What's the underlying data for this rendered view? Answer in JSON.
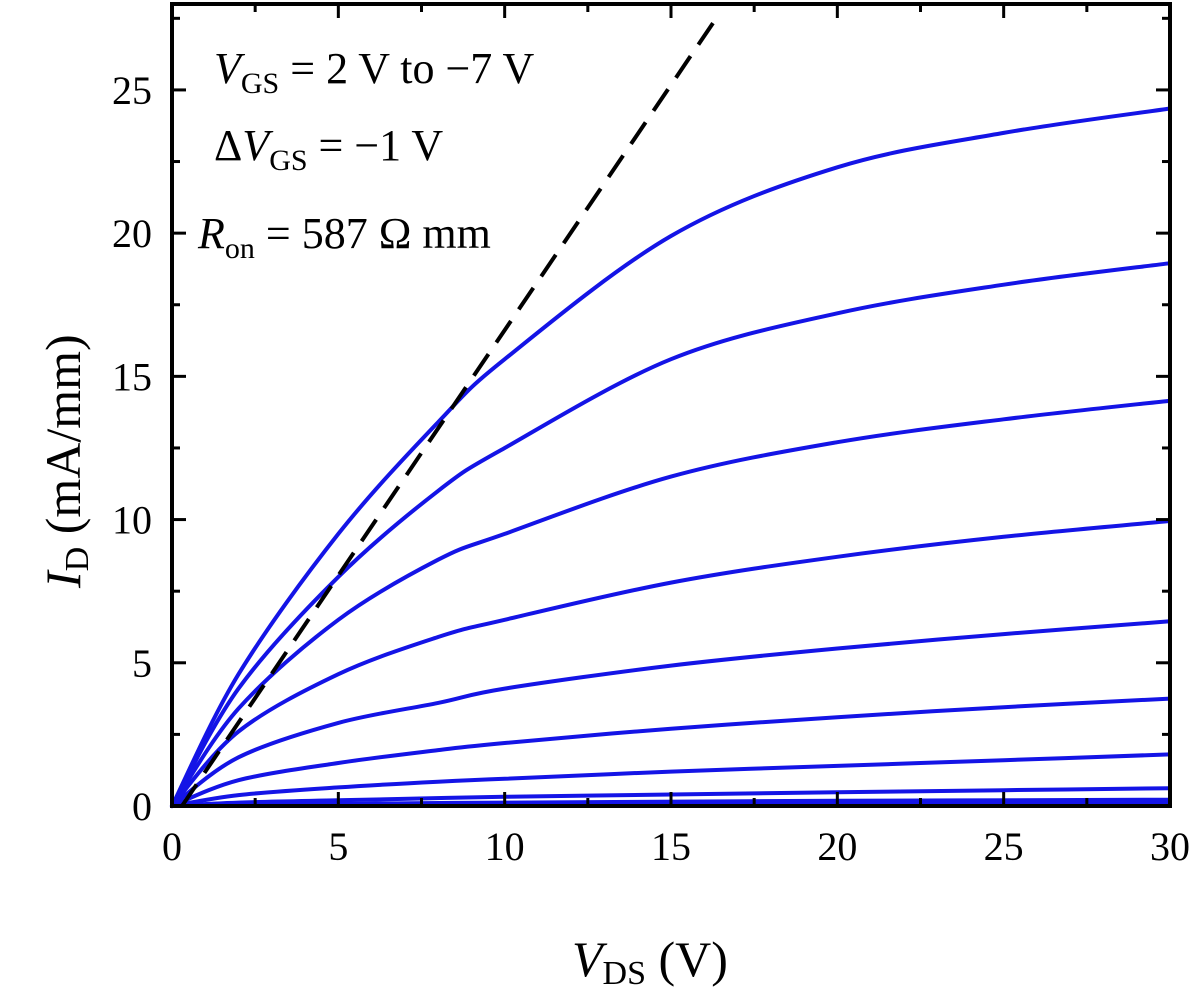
{
  "chart_data": {
    "type": "line",
    "xlabel": {
      "main": "V",
      "sub": "DS",
      "unit": " (V)"
    },
    "ylabel": {
      "main": "I",
      "sub": "D",
      "unit": " (mA/mm)"
    },
    "xlim": [
      0,
      30
    ],
    "ylim": [
      0,
      28
    ],
    "x_ticks": [
      0,
      5,
      10,
      15,
      20,
      25,
      30
    ],
    "y_ticks": [
      0,
      5,
      10,
      15,
      20,
      25
    ],
    "grid": false,
    "series_color": "#1414e6",
    "fit_color": "#000000",
    "series": [
      {
        "points": [
          [
            0,
            0
          ],
          [
            2,
            4.6
          ],
          [
            5,
            9.5
          ],
          [
            8,
            13.4
          ],
          [
            10,
            15.6
          ],
          [
            15,
            19.9
          ],
          [
            20,
            22.3
          ],
          [
            25,
            23.5
          ],
          [
            30,
            24.35
          ]
        ]
      },
      {
        "points": [
          [
            0,
            0
          ],
          [
            2,
            4.1
          ],
          [
            5,
            8.0
          ],
          [
            8,
            11.0
          ],
          [
            10,
            12.5
          ],
          [
            15,
            15.6
          ],
          [
            20,
            17.2
          ],
          [
            25,
            18.2
          ],
          [
            30,
            18.95
          ]
        ]
      },
      {
        "points": [
          [
            0,
            0
          ],
          [
            2,
            3.4
          ],
          [
            5,
            6.5
          ],
          [
            8,
            8.6
          ],
          [
            10,
            9.5
          ],
          [
            15,
            11.5
          ],
          [
            20,
            12.7
          ],
          [
            25,
            13.5
          ],
          [
            30,
            14.15
          ]
        ]
      },
      {
        "points": [
          [
            0,
            0
          ],
          [
            2,
            2.6
          ],
          [
            5,
            4.6
          ],
          [
            8,
            5.9
          ],
          [
            10,
            6.5
          ],
          [
            15,
            7.8
          ],
          [
            20,
            8.7
          ],
          [
            25,
            9.4
          ],
          [
            30,
            9.95
          ]
        ]
      },
      {
        "points": [
          [
            0,
            0
          ],
          [
            2,
            1.7
          ],
          [
            5,
            2.9
          ],
          [
            8,
            3.6
          ],
          [
            10,
            4.1
          ],
          [
            15,
            4.9
          ],
          [
            20,
            5.5
          ],
          [
            25,
            6.0
          ],
          [
            30,
            6.45
          ]
        ]
      },
      {
        "points": [
          [
            0,
            0
          ],
          [
            2,
            0.9
          ],
          [
            5,
            1.5
          ],
          [
            8,
            1.95
          ],
          [
            10,
            2.2
          ],
          [
            15,
            2.7
          ],
          [
            20,
            3.1
          ],
          [
            25,
            3.45
          ],
          [
            30,
            3.75
          ]
        ]
      },
      {
        "points": [
          [
            0,
            0
          ],
          [
            2,
            0.38
          ],
          [
            5,
            0.65
          ],
          [
            8,
            0.85
          ],
          [
            10,
            0.95
          ],
          [
            15,
            1.2
          ],
          [
            20,
            1.4
          ],
          [
            25,
            1.6
          ],
          [
            30,
            1.8
          ]
        ]
      },
      {
        "points": [
          [
            0,
            0
          ],
          [
            2,
            0.12
          ],
          [
            5,
            0.2
          ],
          [
            10,
            0.32
          ],
          [
            15,
            0.4
          ],
          [
            20,
            0.48
          ],
          [
            25,
            0.55
          ],
          [
            30,
            0.62
          ]
        ]
      },
      {
        "points": [
          [
            0,
            0
          ],
          [
            2,
            0.05
          ],
          [
            10,
            0.12
          ],
          [
            20,
            0.18
          ],
          [
            30,
            0.22
          ]
        ]
      },
      {
        "points": [
          [
            0,
            0
          ],
          [
            5,
            0.03
          ],
          [
            15,
            0.06
          ],
          [
            30,
            0.09
          ]
        ]
      }
    ],
    "fit_line": {
      "points": [
        [
          0.3,
          0
        ],
        [
          16.3,
          27.4
        ]
      ]
    },
    "annotations": [
      {
        "main": "V",
        "sub": "GS",
        "rest": " = 2 V to −7 V"
      },
      {
        "prefix": "Δ",
        "main": "V",
        "sub": "GS",
        "rest": " = −1 V"
      },
      {
        "main": "R",
        "sub": "on",
        "rest": " = 587 Ω mm"
      }
    ]
  }
}
